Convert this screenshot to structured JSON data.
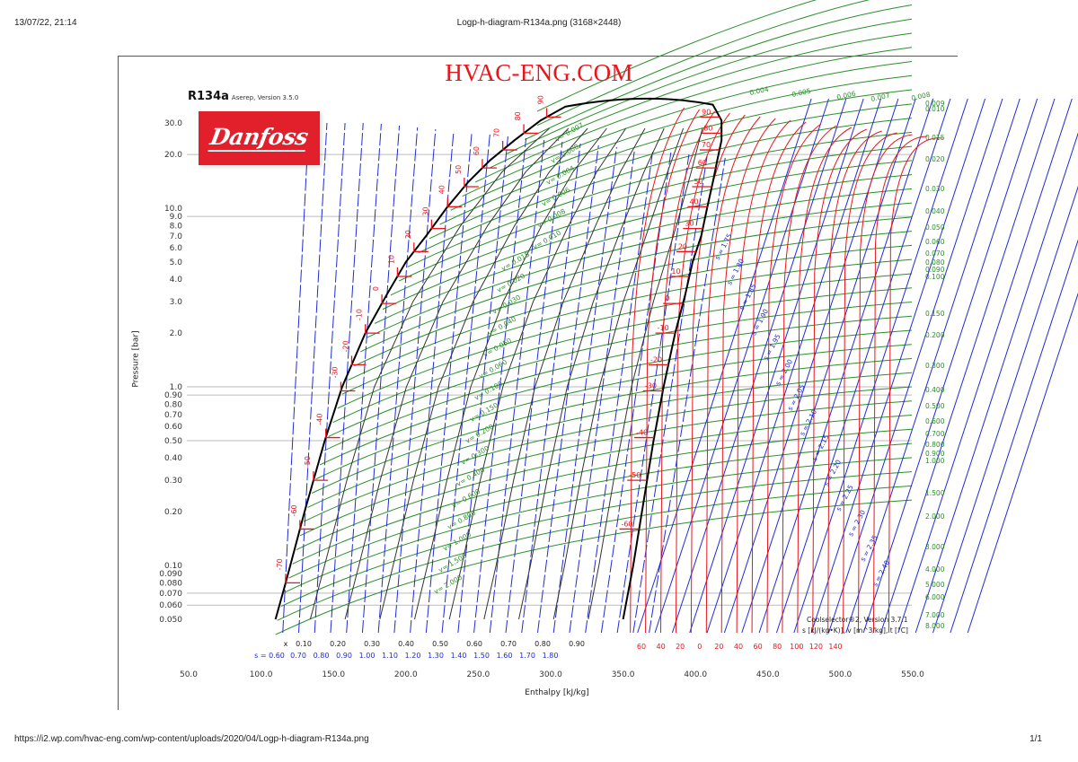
{
  "print_header": {
    "date": "13/07/22, 21:14",
    "title": "Logp-h-diagram-R134a.png (3168×2448)"
  },
  "print_footer": {
    "url": "https://i2.wp.com/hvac-eng.com/wp-content/uploads/2020/04/Logp-h-diagram-R134a.png",
    "page": "1/1"
  },
  "site_title": "HVAC-ENG.COM",
  "refrigerant": {
    "name": "R134a",
    "version": "Aserep, Version 3.5.0"
  },
  "logo": {
    "text": "Danfoss",
    "color": "#e2202c",
    "icon": "danfoss-logo"
  },
  "credit_line1": "Coolselector®2, Version 3.7.1",
  "credit_line2": "s [kJ/(kg•K)], v [m^3/kg], t [°C]",
  "colors": {
    "saturation": "#000000",
    "isotherm": "#e8161c",
    "isentrope": "#1f2bd6",
    "isochore": "#2a8f2a",
    "quality": "#333333",
    "gridline": "#bbbbbb"
  },
  "chart_data": {
    "type": "line",
    "title": "R134a log p-h diagram",
    "xlabel": "Enthalpy [kJ/kg]",
    "ylabel": "Pressure [bar]",
    "xscale": "linear",
    "yscale": "log",
    "xlim": [
      50,
      550
    ],
    "ylim": [
      0.04,
      40
    ],
    "grid": false,
    "x_ticks": [
      "50.0",
      "100.0",
      "150.0",
      "200.0",
      "250.0",
      "300.0",
      "350.0",
      "400.0",
      "450.0",
      "500.0",
      "550.0"
    ],
    "y_ticks": [
      "30.0",
      "20.0",
      "10.0",
      "9.0",
      "8.0",
      "7.0",
      "6.0",
      "5.0",
      "4.0",
      "3.0",
      "2.0",
      "1.0",
      "0.90",
      "0.80",
      "0.70",
      "0.60",
      "0.50",
      "0.40",
      "0.30",
      "0.20",
      "0.10",
      "0.090",
      "0.080",
      "0.070",
      "0.060",
      "0.050"
    ],
    "reference_gridlines_bar": [
      20.0,
      9.0,
      1.0,
      0.9,
      0.5,
      0.07,
      0.06
    ],
    "quality_labels": [
      "x",
      "0.10",
      "0.20",
      "0.30",
      "0.40",
      "0.50",
      "0.60",
      "0.70",
      "0.80",
      "0.90"
    ],
    "entropy_bottom_labels": [
      "s = 0.60",
      "0.70",
      "0.80",
      "0.90",
      "1.00",
      "1.10",
      "1.20",
      "1.30",
      "1.40",
      "1.50",
      "1.60",
      "1.70",
      "1.80"
    ],
    "entropy_vapor_labels": [
      "s = 1.75",
      "s = 1.80",
      "s = 1.85",
      "s = 1.90",
      "s = 1.95",
      "s = 2.00",
      "s = 2.05",
      "s = 2.10",
      "s = 2.15",
      "s = 2.20",
      "s = 2.25",
      "s = 2.30",
      "s = 2.35",
      "s = 2.40"
    ],
    "temperature_bottom_labels": [
      "60",
      "40",
      "20",
      "0",
      "20",
      "40",
      "60",
      "80",
      "100",
      "120",
      "140"
    ],
    "saturated_liquid_temps": [
      "-70",
      "-60",
      "-50",
      "-40",
      "-30",
      "-20",
      "-10",
      "0",
      "10",
      "20",
      "30",
      "40",
      "50",
      "60",
      "70",
      "80",
      "90"
    ],
    "saturated_vapor_temps": [
      "-60",
      "-50",
      "-40",
      "-30",
      "-20",
      "-10",
      "0",
      "10",
      "20",
      "30",
      "40",
      "50",
      "60",
      "70",
      "80",
      "90"
    ],
    "volume_labels_twophase": [
      "v= 0.007",
      "v= 0.008",
      "v= 0.004",
      "v= 0.006",
      "v= 0.008",
      "v= 0.010",
      "v= 0.015",
      "v= 0.020",
      "v= 0.030",
      "v= 0.040",
      "v= 0.050",
      "v= 0.060",
      "v= 0.100",
      "v= 0.150",
      "v= 0.200",
      "v= 0.300",
      "v= 0.400",
      "v= 0.600",
      "v= 0.800",
      "v= 1.000",
      "v= 1.500",
      "v= 2.000"
    ],
    "volume_labels_right": [
      "0.004",
      "0.005",
      "0.006",
      "0.007",
      "0.008",
      "0.009",
      "0.010",
      "0.015",
      "0.020",
      "0.030",
      "0.040",
      "0.050",
      "0.060",
      "0.070",
      "0.080",
      "0.090",
      "0.100",
      "0.150",
      "0.200",
      "0.300",
      "0.400",
      "0.500",
      "0.600",
      "0.700",
      "0.800",
      "0.900",
      "1.000",
      "1.500",
      "2.000",
      "3.000",
      "4.000",
      "5.000",
      "6.000",
      "7.000",
      "8.000"
    ],
    "saturation_dome": {
      "liquid_line": [
        [
          110,
          0.05
        ],
        [
          117,
          0.08
        ],
        [
          130,
          0.2
        ],
        [
          144,
          0.5
        ],
        [
          156,
          1.0
        ],
        [
          172,
          2.0
        ],
        [
          187,
          3.3
        ],
        [
          200,
          5.0
        ],
        [
          214,
          7.0
        ],
        [
          228,
          10.0
        ],
        [
          243,
          14.0
        ],
        [
          258,
          18.5
        ],
        [
          275,
          24.0
        ],
        [
          293,
          31.0
        ],
        [
          310,
          37.0
        ]
      ],
      "vapor_line": [
        [
          350,
          0.05
        ],
        [
          357,
          0.1
        ],
        [
          363,
          0.2
        ],
        [
          371,
          0.5
        ],
        [
          378,
          1.0
        ],
        [
          386,
          2.0
        ],
        [
          393,
          3.3
        ],
        [
          398,
          5.0
        ],
        [
          404,
          7.0
        ],
        [
          408,
          10.0
        ],
        [
          412,
          14.0
        ],
        [
          415,
          18.5
        ],
        [
          418,
          24.0
        ],
        [
          418,
          31.0
        ],
        [
          412,
          38.0
        ]
      ]
    }
  },
  "axis_labels": {
    "x": "Enthalpy [kJ/kg]",
    "y": "Pressure [bar]"
  }
}
